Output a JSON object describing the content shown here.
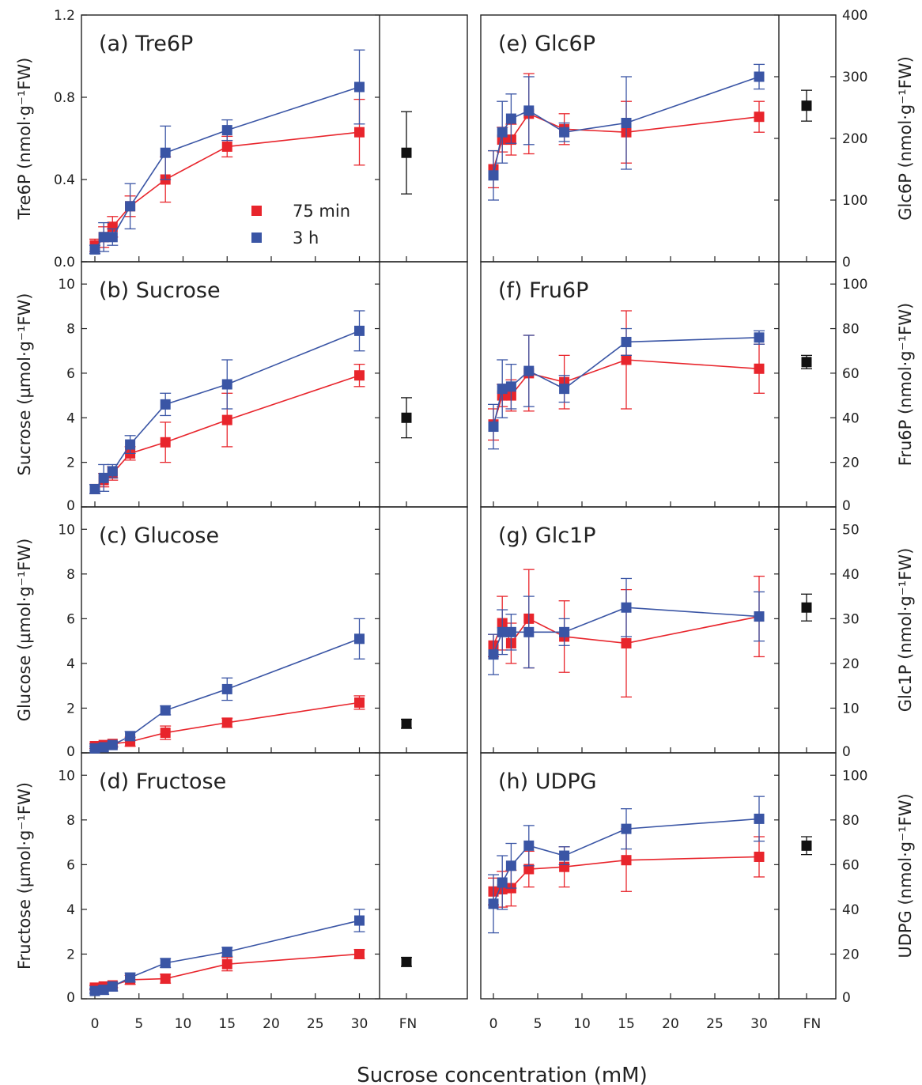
{
  "chart_data": {
    "xlabel": "Sucrose concentration (mM)",
    "x_ticks": [
      0,
      5,
      10,
      15,
      20,
      25,
      30
    ],
    "x_ticks_left": [
      "0",
      "5",
      "10",
      "15",
      "20",
      "25",
      "30"
    ],
    "x_ticks_right": [
      "0",
      "5",
      "10",
      "15",
      "20",
      "25",
      "30"
    ],
    "fn_label_left": "FN",
    "fn_label_right": "FN",
    "x": [
      0,
      1,
      2,
      4,
      8,
      15,
      30
    ],
    "series_names": [
      "75 min",
      "3 h"
    ],
    "colors": {
      "75 min": "#e8252c",
      "3 h": "#3a55a5",
      "FN": "#111111"
    },
    "legend": {
      "placement": "inside panel (a), lower-middle",
      "entries": [
        "75 min",
        "3 h"
      ]
    },
    "panels": [
      {
        "id": "a",
        "title": "(a) Tre6P",
        "side": "left",
        "ylabel": "Tre6P (nmol·g⁻¹FW)",
        "ylim": [
          0,
          1.2
        ],
        "yticks": [
          0,
          0.4,
          0.8,
          1.2
        ],
        "ytick_labels": [
          "0.0",
          "0.4",
          "0.8",
          "1.2"
        ],
        "series": [
          {
            "name": "75 min",
            "values": [
              0.08,
              0.12,
              0.17,
              0.27,
              0.4,
              0.56,
              0.63
            ],
            "errors": [
              0.03,
              0.05,
              0.05,
              0.05,
              0.11,
              0.05,
              0.16
            ]
          },
          {
            "name": "3 h",
            "values": [
              0.06,
              0.12,
              0.12,
              0.27,
              0.53,
              0.64,
              0.85
            ],
            "errors": [
              0.02,
              0.07,
              0.04,
              0.11,
              0.13,
              0.05,
              0.18
            ]
          }
        ],
        "fn": {
          "value": 0.53,
          "error": 0.2
        }
      },
      {
        "id": "b",
        "title": "(b) Sucrose",
        "side": "left",
        "ylabel": "Sucrose (µmol·g⁻¹FW)",
        "ylim": [
          0,
          11
        ],
        "yticks": [
          0,
          2,
          4,
          6,
          8,
          10
        ],
        "ytick_labels": [
          "0",
          "2",
          "4",
          "6",
          "8",
          "10"
        ],
        "series": [
          {
            "name": "75 min",
            "values": [
              0.8,
              1.2,
              1.5,
              2.4,
              2.9,
              3.9,
              5.9
            ],
            "errors": [
              0.2,
              0.3,
              0.3,
              0.3,
              0.9,
              1.2,
              0.5
            ]
          },
          {
            "name": "3 h",
            "values": [
              0.8,
              1.3,
              1.6,
              2.8,
              4.6,
              5.5,
              7.9
            ],
            "errors": [
              0.2,
              0.6,
              0.3,
              0.4,
              0.5,
              1.1,
              0.9
            ]
          }
        ],
        "fn": {
          "value": 4.0,
          "error": 0.9
        }
      },
      {
        "id": "c",
        "title": "(c) Glucose",
        "side": "left",
        "ylabel": "Glucose (µmol·g⁻¹FW)",
        "ylim": [
          0,
          11
        ],
        "yticks": [
          0,
          2,
          4,
          6,
          8,
          10
        ],
        "ytick_labels": [
          "0",
          "2",
          "4",
          "6",
          "8",
          "10"
        ],
        "series": [
          {
            "name": "75 min",
            "values": [
              0.3,
              0.35,
              0.4,
              0.5,
              0.9,
              1.35,
              2.25
            ],
            "errors": [
              0.1,
              0.1,
              0.1,
              0.2,
              0.3,
              0.2,
              0.3
            ]
          },
          {
            "name": "3 h",
            "values": [
              0.2,
              0.25,
              0.35,
              0.75,
              1.9,
              2.85,
              5.1
            ],
            "errors": [
              0.1,
              0.1,
              0.1,
              0.2,
              0.2,
              0.5,
              0.9
            ]
          }
        ],
        "fn": {
          "value": 1.3,
          "error": 0.2
        }
      },
      {
        "id": "d",
        "title": "(d) Fructose",
        "side": "left",
        "ylabel": "Fructose (µmol·g⁻¹FW)",
        "ylim": [
          0,
          11
        ],
        "yticks": [
          0,
          2,
          4,
          6,
          8,
          10
        ],
        "ytick_labels": [
          "0",
          "2",
          "4",
          "6",
          "8",
          "10"
        ],
        "series": [
          {
            "name": "75 min",
            "values": [
              0.5,
              0.55,
              0.6,
              0.85,
              0.9,
              1.55,
              2.0
            ],
            "errors": [
              0.1,
              0.1,
              0.1,
              0.2,
              0.2,
              0.3,
              0.2
            ]
          },
          {
            "name": "3 h",
            "values": [
              0.35,
              0.4,
              0.55,
              0.95,
              1.6,
              2.1,
              3.5
            ],
            "errors": [
              0.1,
              0.2,
              0.2,
              0.2,
              0.2,
              0.2,
              0.5
            ]
          }
        ],
        "fn": {
          "value": 1.65,
          "error": 0.2
        }
      },
      {
        "id": "e",
        "title": "(e) Glc6P",
        "side": "right",
        "ylabel": "Glc6P (nmol·g⁻¹FW)",
        "ylim": [
          0,
          400
        ],
        "yticks": [
          0,
          100,
          200,
          300,
          400
        ],
        "ytick_labels": [
          "0",
          "100",
          "200",
          "300",
          "400"
        ],
        "series": [
          {
            "name": "75 min",
            "values": [
              150,
              198,
              198,
              240,
              215,
              210,
              235
            ],
            "errors": [
              30,
              20,
              25,
              65,
              25,
              50,
              25
            ]
          },
          {
            "name": "3 h",
            "values": [
              140,
              210,
              232,
              245,
              210,
              225,
              300
            ],
            "errors": [
              40,
              50,
              40,
              55,
              15,
              75,
              20
            ]
          }
        ],
        "fn": {
          "value": 253,
          "error": 25
        }
      },
      {
        "id": "f",
        "title": "(f) Fru6P",
        "side": "right",
        "ylabel": "Fru6P (nmol·g⁻¹FW)",
        "ylim": [
          0,
          110
        ],
        "yticks": [
          0,
          20,
          40,
          60,
          80,
          100
        ],
        "ytick_labels": [
          "0",
          "20",
          "40",
          "60",
          "80",
          "100"
        ],
        "series": [
          {
            "name": "75 min",
            "values": [
              37,
              50,
              50,
              60,
              56,
              66,
              62
            ],
            "errors": [
              7,
              5,
              7,
              17,
              12,
              22,
              11
            ]
          },
          {
            "name": "3 h",
            "values": [
              36,
              53,
              54,
              61,
              53,
              74,
              76
            ],
            "errors": [
              10,
              13,
              10,
              16,
              6,
              6,
              3
            ]
          }
        ],
        "fn": {
          "value": 65,
          "error": 3
        }
      },
      {
        "id": "g",
        "title": "(g) Glc1P",
        "side": "right",
        "ylabel": "Glc1P (nmol·g⁻¹FW)",
        "ylim": [
          0,
          55
        ],
        "yticks": [
          0,
          10,
          20,
          30,
          40,
          50
        ],
        "ytick_labels": [
          "0",
          "10",
          "20",
          "30",
          "40",
          "50"
        ],
        "series": [
          {
            "name": "75 min",
            "values": [
              24,
              29,
              24.5,
              30,
              26,
              24.5,
              30.5
            ],
            "errors": [
              2.5,
              6,
              4.5,
              11,
              8,
              12,
              9
            ]
          },
          {
            "name": "3 h",
            "values": [
              22,
              27,
              27,
              27,
              27,
              32.5,
              30.5
            ],
            "errors": [
              4.5,
              5,
              4,
              8,
              3,
              6.5,
              5.5
            ]
          }
        ],
        "fn": {
          "value": 32.5,
          "error": 3
        }
      },
      {
        "id": "h",
        "title": "(h) UDPG",
        "side": "right",
        "ylabel": "UDPG (nmol·g⁻¹FW)",
        "ylim": [
          0,
          110
        ],
        "yticks": [
          0,
          20,
          40,
          60,
          80,
          100
        ],
        "ytick_labels": [
          "0",
          "20",
          "40",
          "60",
          "80",
          "100"
        ],
        "series": [
          {
            "name": "75 min",
            "values": [
              48,
              49,
              49.5,
              58,
              59,
              62,
              63.5
            ],
            "errors": [
              6,
              8,
              8,
              8,
              9,
              14,
              9
            ]
          },
          {
            "name": "3 h",
            "values": [
              42.5,
              52,
              59.5,
              68.5,
              64,
              76,
              80.5
            ],
            "errors": [
              13,
              12,
              10,
              9,
              4,
              9,
              10
            ]
          }
        ],
        "fn": {
          "value": 68.5,
          "error": 4
        }
      }
    ]
  }
}
